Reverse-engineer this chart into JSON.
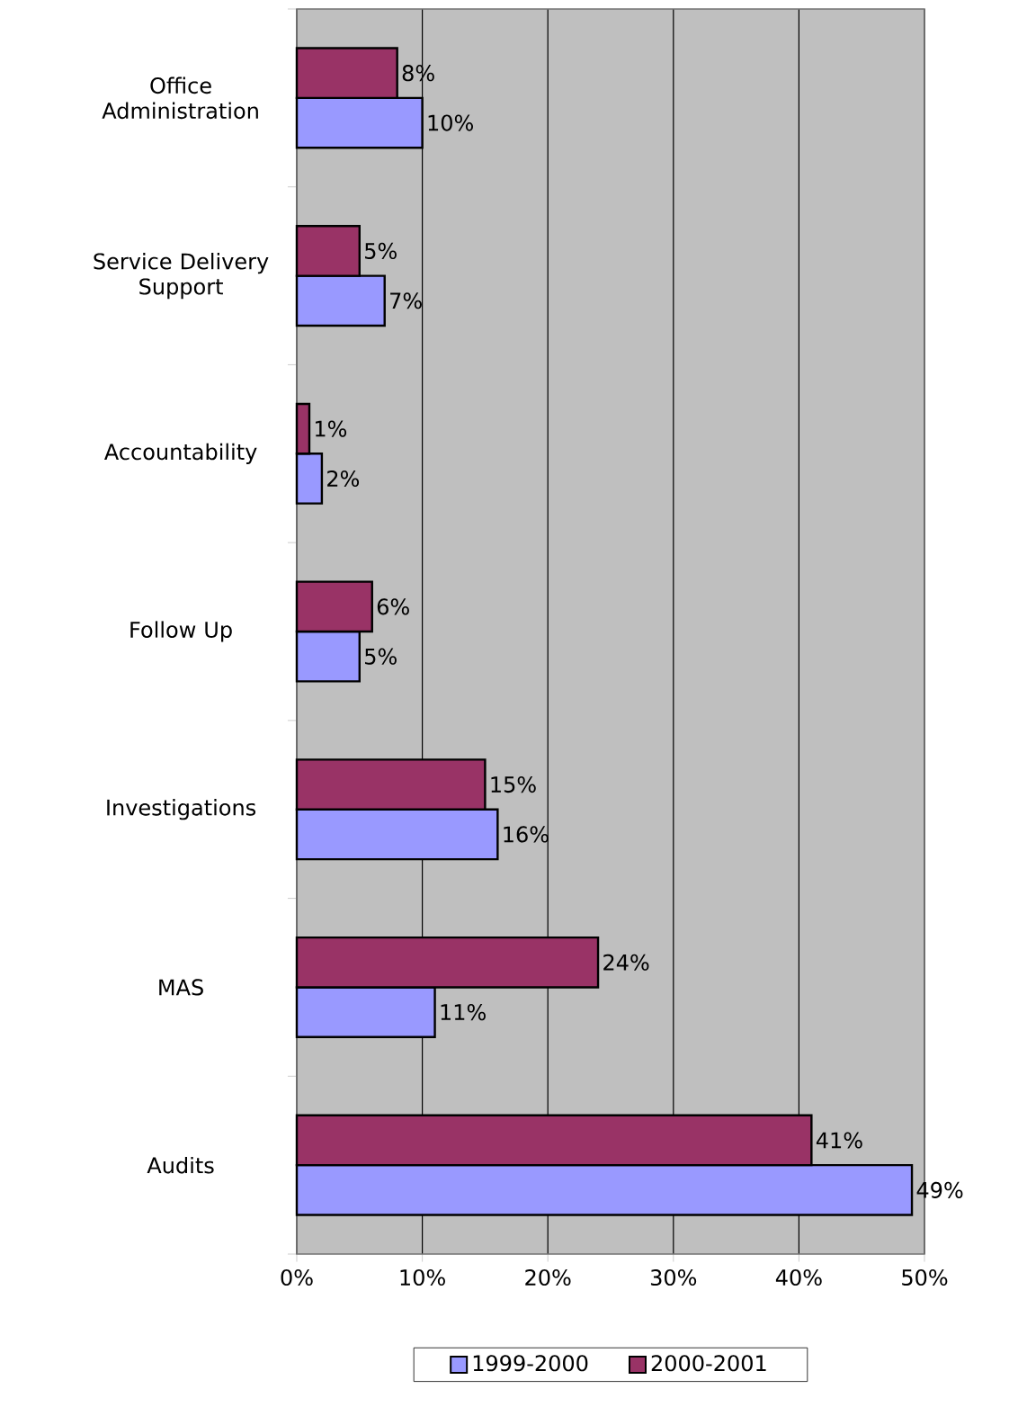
{
  "chart_data": {
    "type": "bar",
    "orientation": "horizontal",
    "categories": [
      "Office Administration",
      "Service Delivery Support",
      "Accountability",
      "Follow Up",
      "Investigations",
      "MAS",
      "Audits"
    ],
    "series": [
      {
        "name": "1999-2000",
        "color": "#9999ff",
        "values": [
          10,
          7,
          2,
          5,
          16,
          11,
          49
        ],
        "value_labels": [
          "10%",
          "7%",
          "2%",
          "5%",
          "16%",
          "11%",
          "49%"
        ]
      },
      {
        "name": "2000-2001",
        "color": "#993366",
        "values": [
          8,
          5,
          1,
          6,
          15,
          24,
          41
        ],
        "value_labels": [
          "8%",
          "5%",
          "1%",
          "6%",
          "15%",
          "24%",
          "41%"
        ]
      }
    ],
    "xlim": [
      0,
      50
    ],
    "xticks": [
      {
        "value": 0,
        "label": "0%"
      },
      {
        "value": 10,
        "label": "10%"
      },
      {
        "value": 20,
        "label": "20%"
      },
      {
        "value": 30,
        "label": "30%"
      },
      {
        "value": 40,
        "label": "40%"
      },
      {
        "value": 50,
        "label": "50%"
      }
    ],
    "grid": "x",
    "legend": "bottom"
  }
}
